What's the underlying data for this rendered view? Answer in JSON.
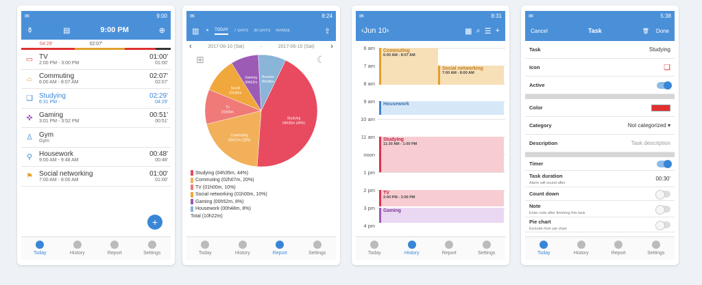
{
  "p1": {
    "time": "9:00",
    "title": "9:00 PM",
    "bar": [
      "04:29'",
      "02:07'",
      ""
    ],
    "tasks": [
      {
        "icon": "tv-icon",
        "g": "▭",
        "name": "TV",
        "sub": "2:00 PM - 3:00 PM",
        "dur": "01:00'",
        "sdur": "01:00'",
        "c": "#e05050"
      },
      {
        "icon": "car-icon",
        "g": "⌓",
        "name": "Commuting",
        "sub": "6:00 AM - 8:07 AM",
        "dur": "02:07'",
        "sdur": "02:07'",
        "c": "#e0a030"
      },
      {
        "icon": "book-icon",
        "g": "❑",
        "name": "Studying",
        "sub": "6:31 PM -",
        "dur": "02:29'",
        "sdur": "04:29'",
        "c": "#3a86d6"
      },
      {
        "icon": "gamepad-icon",
        "g": "✜",
        "name": "Gaming",
        "sub": "3:01 PM - 3:52 PM",
        "dur": "00:51'",
        "sdur": "00:51'",
        "c": "#a050c0"
      },
      {
        "icon": "gym-icon",
        "g": "♙",
        "name": "Gym",
        "sub": "Gym",
        "dur": "",
        "sdur": "",
        "c": "#3a86d6"
      },
      {
        "icon": "vacuum-icon",
        "g": "⚲",
        "name": "Housework",
        "sub": "9:00 AM - 9:48 AM",
        "dur": "00:48'",
        "sdur": "00:48'",
        "c": "#3a86d6"
      },
      {
        "icon": "network-icon",
        "g": "⚑",
        "name": "Social networking",
        "sub": "7:00 AM - 8:00 AM",
        "dur": "01:00'",
        "sdur": "01:00'",
        "c": "#e0a030"
      }
    ],
    "nav": [
      "Today",
      "History",
      "Report",
      "Settings"
    ]
  },
  "p2": {
    "time": "8:24",
    "tabs": [
      "TODAY",
      "7 DAYS",
      "30 DAYS",
      "RANGE"
    ],
    "from": "2017-06-10 (Sat)",
    "to": "2017-06-10 (Sat)",
    "legend": [
      "Studying (04h35m, 44%)",
      "Commuting (02h07m, 20%)",
      "TV (01h00m, 10%)",
      "Social networking (01h00m, 10%)",
      "Gaming (00h52m, 8%)",
      "Housework (00h48m, 8%)",
      "Total (10h22m)"
    ],
    "chart_data": {
      "type": "pie",
      "labels": [
        "Studying",
        "Commuting",
        "TV",
        "Social networking",
        "Gaming",
        "Housework"
      ],
      "values": [
        44,
        20,
        10,
        10,
        8,
        8
      ],
      "slice_labels": [
        "Studying\n04h35m (44%)",
        "Commuting\n02h07m (20%)",
        "TV\n01h00m",
        "Social\n01h00m",
        "Gaming\n00h52m",
        "Housew\n00h48m"
      ],
      "colors": [
        "#e84a5f",
        "#f2b05a",
        "#ef7a78",
        "#f0a73c",
        "#9c5bb5",
        "#8ab4d8"
      ]
    }
  },
  "p3": {
    "time": "8:31",
    "date": "Jun 10",
    "hours": [
      "6 am",
      "7 am",
      "8 am",
      "9 am",
      "10 am",
      "11 am",
      "noon",
      "1 pm",
      "2 pm",
      "3 pm",
      "4 pm"
    ],
    "events": [
      {
        "name": "Commuting",
        "t": "6:00 AM - 8:07 AM"
      },
      {
        "name": "Social networking",
        "t": "7:00 AM - 8:00 AM"
      },
      {
        "name": "Housework",
        "t": ""
      },
      {
        "name": "Studying",
        "t": "11:30 AM - 1:00 PM"
      },
      {
        "name": "TV",
        "t": "2:00 PM - 3:00 PM"
      },
      {
        "name": "Gaming",
        "t": ""
      }
    ]
  },
  "p4": {
    "time": "5:38",
    "cancel": "Cancel",
    "title": "Task",
    "done": "Done",
    "rows": {
      "task": "Task",
      "task_v": "Studying",
      "icon": "Icon",
      "active": "Active",
      "color": "Color",
      "category": "Category",
      "category_v": "Not categorized",
      "desc": "Description",
      "desc_v": "Task description",
      "timer": "Timer",
      "dur": "Task duration",
      "dur_sub": "Alarm will sound after",
      "dur_v": "00:30'",
      "countdown": "Count down",
      "note": "Note",
      "note_sub": "Enter note after finishing this task",
      "pie": "Pie chart",
      "pie_sub": "Exclude from pie chart"
    },
    "color_v": "#e03030"
  }
}
